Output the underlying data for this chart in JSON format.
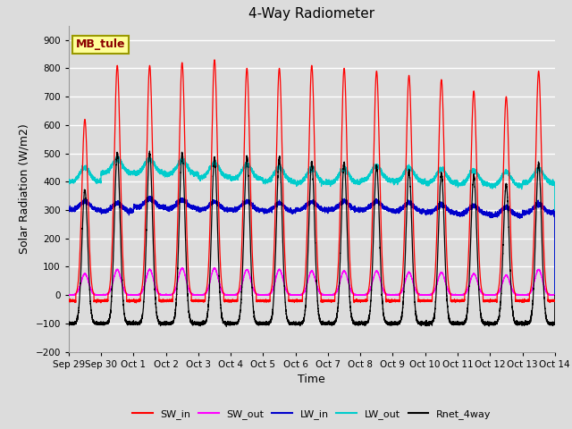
{
  "title": "4-Way Radiometer",
  "xlabel": "Time",
  "ylabel": "Solar Radiation (W/m2)",
  "ylim": [
    -200,
    950
  ],
  "station_label": "MB_tule",
  "colors": {
    "SW_in": "#FF0000",
    "SW_out": "#FF00FF",
    "LW_in": "#0000CC",
    "LW_out": "#00CCCC",
    "Rnet_4way": "#000000"
  },
  "xtick_labels": [
    "Sep 29",
    "Sep 30",
    "Oct 1",
    "Oct 2",
    "Oct 3",
    "Oct 4",
    "Oct 5",
    "Oct 6",
    "Oct 7",
    "Oct 8",
    "Oct 9",
    "Oct 10",
    "Oct 11",
    "Oct 12",
    "Oct 13",
    "Oct 14"
  ],
  "background_color": "#DCDCDC",
  "plot_bg_color": "#DCDCDC",
  "grid_color": "#FFFFFF",
  "n_days": 15,
  "SW_in_peaks": [
    620,
    810,
    810,
    820,
    830,
    800,
    800,
    810,
    800,
    790,
    775,
    760,
    720,
    700,
    790
  ],
  "SW_out_peaks": [
    75,
    90,
    90,
    95,
    95,
    90,
    90,
    85,
    85,
    85,
    80,
    80,
    75,
    70,
    90
  ],
  "LW_in_base": [
    300,
    295,
    310,
    305,
    300,
    300,
    295,
    300,
    300,
    300,
    295,
    290,
    285,
    280,
    290
  ],
  "LW_out_base": [
    400,
    430,
    430,
    425,
    415,
    410,
    400,
    395,
    395,
    405,
    400,
    395,
    390,
    385,
    395
  ],
  "Rnet_night": -100,
  "Rnet_peaks": [
    470,
    600,
    600,
    600,
    585,
    585,
    585,
    570,
    565,
    555,
    540,
    530,
    520,
    490,
    565
  ]
}
